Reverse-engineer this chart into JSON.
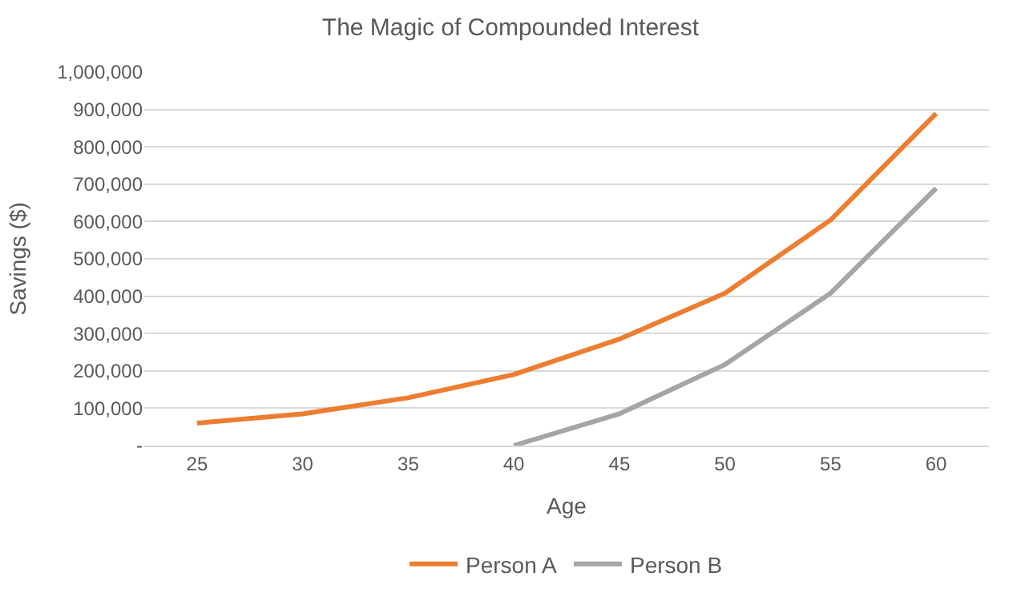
{
  "chart_data": {
    "type": "line",
    "title": "The Magic of Compounded Interest",
    "xlabel": "Age",
    "ylabel": "Savings ($)",
    "categories": [
      "25",
      "30",
      "35",
      "40",
      "45",
      "50",
      "55",
      "60"
    ],
    "series": [
      {
        "name": "Person A",
        "color": "#ed7d31",
        "values": [
          60000,
          85000,
          128000,
          190000,
          285000,
          408000,
          604000,
          889000
        ]
      },
      {
        "name": "Person B",
        "color": "#a5a5a5",
        "values": [
          null,
          null,
          null,
          0,
          85000,
          217000,
          408000,
          689000
        ]
      }
    ],
    "ylim": [
      0,
      1000000
    ],
    "yticks": [
      {
        "value": 0,
        "label": "-"
      },
      {
        "value": 100000,
        "label": "100,000"
      },
      {
        "value": 200000,
        "label": "200,000"
      },
      {
        "value": 300000,
        "label": "300,000"
      },
      {
        "value": 400000,
        "label": "400,000"
      },
      {
        "value": 500000,
        "label": "500,000"
      },
      {
        "value": 600000,
        "label": "600,000"
      },
      {
        "value": 700000,
        "label": "700,000"
      },
      {
        "value": 800000,
        "label": "800,000"
      },
      {
        "value": 900000,
        "label": "900,000"
      },
      {
        "value": 1000000,
        "label": "1,000,000"
      }
    ],
    "grid": "y",
    "legend": "bottom",
    "marker": "none",
    "line_style": "solid"
  }
}
